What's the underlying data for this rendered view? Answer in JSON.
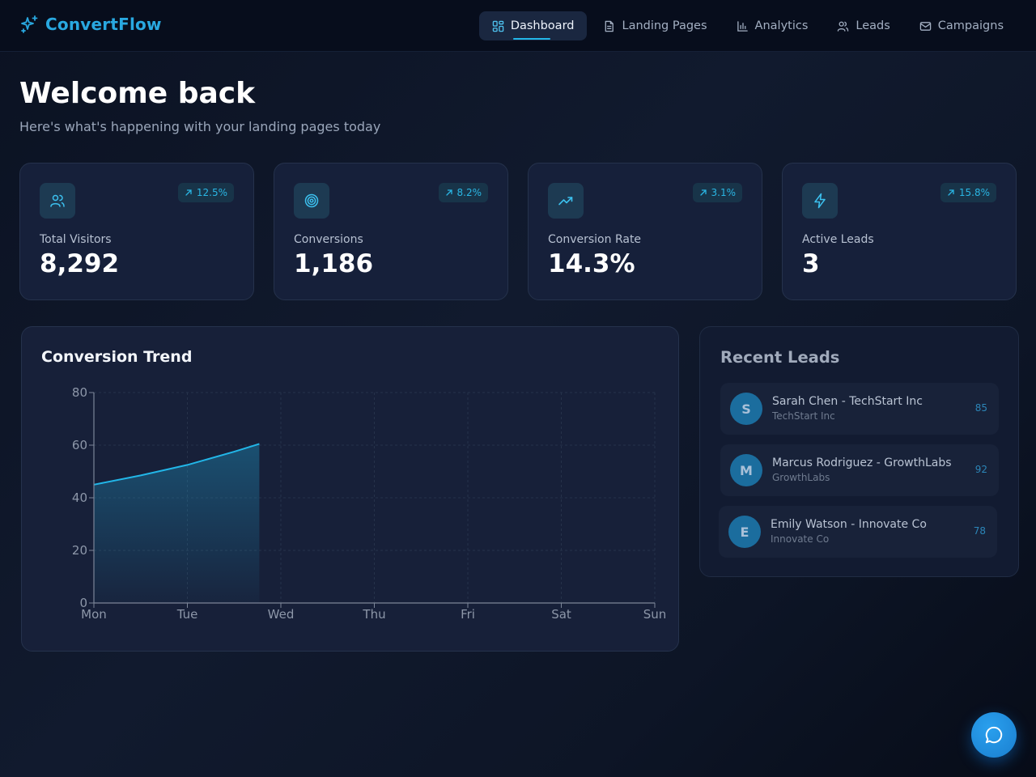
{
  "brand": {
    "name": "ConvertFlow"
  },
  "nav": {
    "items": [
      {
        "label": "Dashboard",
        "icon": "dashboard-grid-icon",
        "active": true
      },
      {
        "label": "Landing Pages",
        "icon": "document-icon",
        "active": false
      },
      {
        "label": "Analytics",
        "icon": "bar-chart-icon",
        "active": false
      },
      {
        "label": "Leads",
        "icon": "users-icon",
        "active": false
      },
      {
        "label": "Campaigns",
        "icon": "mail-icon",
        "active": false
      }
    ]
  },
  "welcome": {
    "title": "Welcome back",
    "subtitle": "Here's what's happening with your landing pages today"
  },
  "stats": [
    {
      "label": "Total Visitors",
      "value": "8,292",
      "change": "12.5%",
      "icon": "users-icon"
    },
    {
      "label": "Conversions",
      "value": "1,186",
      "change": "8.2%",
      "icon": "target-icon"
    },
    {
      "label": "Conversion Rate",
      "value": "14.3%",
      "change": "3.1%",
      "icon": "trending-up-icon"
    },
    {
      "label": "Active Leads",
      "value": "3",
      "change": "15.8%",
      "icon": "lightning-icon"
    }
  ],
  "chart": {
    "title": "Conversion Trend"
  },
  "chart_data": {
    "type": "area",
    "title": "Conversion Trend",
    "categories": [
      "Mon",
      "Tue",
      "Wed",
      "Thu",
      "Fri",
      "Sat",
      "Sun"
    ],
    "series": [
      {
        "x": [
          0,
          0.5,
          1,
          1.5,
          1.77
        ],
        "values": [
          45,
          48.5,
          52.5,
          57.5,
          60.5
        ]
      }
    ],
    "yticks": [
      0,
      20,
      40,
      60,
      80
    ],
    "ylim": [
      0,
      80
    ],
    "xlabel": "",
    "ylabel": "",
    "grid": true,
    "line_color": "#22b6e8"
  },
  "leads": {
    "title": "Recent Leads",
    "items": [
      {
        "initial": "S",
        "name": "Sarah Chen - TechStart Inc",
        "company": "TechStart Inc",
        "score": "85"
      },
      {
        "initial": "M",
        "name": "Marcus Rodriguez - GrowthLabs",
        "company": "GrowthLabs",
        "score": "92"
      },
      {
        "initial": "E",
        "name": "Emily Watson - Innovate Co",
        "company": "Innovate Co",
        "score": "78"
      }
    ]
  },
  "chat": {
    "icon": "chat-bubble-icon"
  },
  "colors": {
    "accent": "#22b6e8",
    "brand": "#29a8e0",
    "card": "#16203a",
    "background": "#0b1222"
  }
}
